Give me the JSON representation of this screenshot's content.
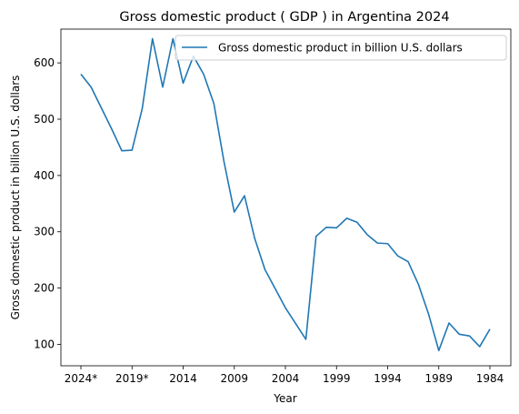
{
  "chart_data": {
    "type": "line",
    "title": "Gross domestic product ( GDP ) in Argentina 2024",
    "xlabel": "Year",
    "ylabel": "Gross domestic product in billion U.S. dollars",
    "x": [
      "2024*",
      "2023*",
      "2022*",
      "2021*",
      "2020*",
      "2019*",
      "2018",
      "2017",
      "2016",
      "2015",
      "2014",
      "2013",
      "2012",
      "2011",
      "2010",
      "2009",
      "2008",
      "2007",
      "2006",
      "2005",
      "2004",
      "2003",
      "2002",
      "2001",
      "2000",
      "1999",
      "1998",
      "1997",
      "1996",
      "1995",
      "1994",
      "1993",
      "1992",
      "1991",
      "1990",
      "1989",
      "1988",
      "1987",
      "1986",
      "1985",
      "1984"
    ],
    "x_tick_labels": [
      "2024*",
      "2019*",
      "2014",
      "2009",
      "2004",
      "1999",
      "1994",
      "1989",
      "1984"
    ],
    "y_ticks": [
      100,
      200,
      300,
      400,
      500,
      600
    ],
    "ylim": [
      62,
      660
    ],
    "grid": false,
    "legend_position": "top-right",
    "series": [
      {
        "name": "Gross domestic product in billion U.S. dollars",
        "color": "#1f77b4",
        "values": [
          580,
          557,
          520,
          483,
          444,
          445,
          519,
          643,
          557,
          643,
          564,
          612,
          580,
          528,
          424,
          335,
          364,
          288,
          233,
          199,
          165,
          137,
          109,
          292,
          308,
          307,
          324,
          317,
          295,
          280,
          279,
          257,
          247,
          207,
          154,
          89,
          138,
          118,
          115,
          96,
          127
        ]
      }
    ]
  }
}
